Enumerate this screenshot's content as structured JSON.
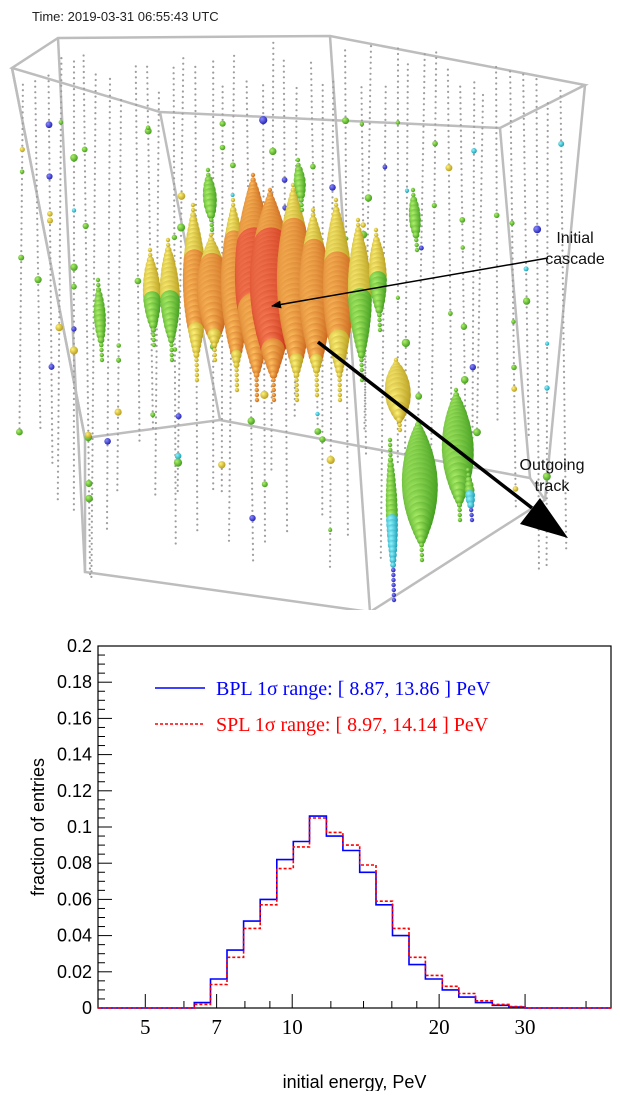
{
  "event_display": {
    "timestamp": "Time: 2019-03-31 06:55:43 UTC",
    "annotation_cascade_line1": "Initial",
    "annotation_cascade_line2": "cascade",
    "annotation_track_line1": "Outgoing",
    "annotation_track_line2": "track",
    "colors": {
      "frame": "#bdbdbd",
      "dom_inactive": "#9e9e9e",
      "arrow": "#000000"
    }
  },
  "chart_data": {
    "type": "step-histogram",
    "title": "",
    "xlabel": "initial energy, PeV",
    "ylabel": "fraction of entries",
    "x_scale": "log",
    "xlim": [
      4,
      45
    ],
    "ylim": [
      0,
      0.2
    ],
    "x_ticks": [
      5,
      7,
      10,
      20,
      30
    ],
    "y_ticks": [
      0,
      0.02,
      0.04,
      0.06,
      0.08,
      0.1,
      0.12,
      0.14,
      0.16,
      0.18,
      0.2
    ],
    "y_tick_labels": [
      "0",
      "0.02",
      "0.04",
      "0.06",
      "0.08",
      "0.1",
      "0.12",
      "0.14",
      "0.16",
      "0.18",
      "0.2"
    ],
    "legend_position": "top",
    "bin_edges": [
      4.0,
      6.3,
      6.8,
      7.35,
      7.95,
      8.6,
      9.3,
      10.05,
      10.85,
      11.75,
      12.7,
      13.75,
      14.85,
      16.05,
      17.35,
      18.75,
      20.3,
      21.95,
      23.75,
      25.7,
      27.8,
      30.0,
      45.0
    ],
    "series": [
      {
        "name": "BPL 1σ range: [ 8.87, 13.86 ] PeV",
        "color": "#0000ff",
        "line_style": "solid",
        "values": [
          0.0,
          0.003,
          0.016,
          0.032,
          0.048,
          0.06,
          0.082,
          0.092,
          0.106,
          0.095,
          0.087,
          0.075,
          0.057,
          0.04,
          0.024,
          0.016,
          0.01,
          0.006,
          0.003,
          0.0015,
          0.0005,
          0.0
        ]
      },
      {
        "name": "SPL 1σ range: [ 8.97, 14.14 ] PeV",
        "color": "#ff0000",
        "line_style": "dotted",
        "values": [
          0.0,
          0.002,
          0.013,
          0.028,
          0.044,
          0.057,
          0.077,
          0.089,
          0.105,
          0.097,
          0.09,
          0.079,
          0.059,
          0.044,
          0.028,
          0.018,
          0.012,
          0.008,
          0.004,
          0.002,
          0.0008,
          0.0
        ]
      }
    ]
  }
}
